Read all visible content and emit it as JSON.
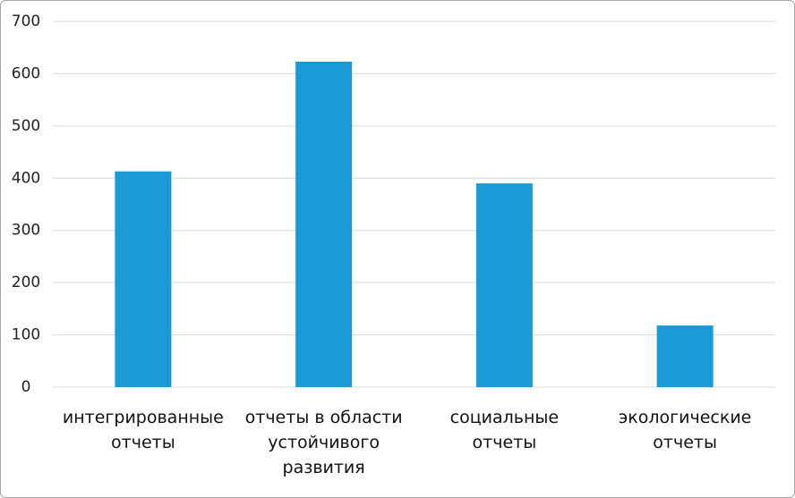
{
  "chart_data": {
    "type": "bar",
    "categories": [
      "интегрированные отчеты",
      "отчеты в области устойчивого развития",
      "социальные отчеты",
      "экологические отчеты"
    ],
    "values": [
      413,
      623,
      390,
      118
    ],
    "color": "#1b9ad6",
    "ylim": [
      0,
      700
    ],
    "yticks": [
      0,
      100,
      200,
      300,
      400,
      500,
      600,
      700
    ],
    "grid": true
  }
}
